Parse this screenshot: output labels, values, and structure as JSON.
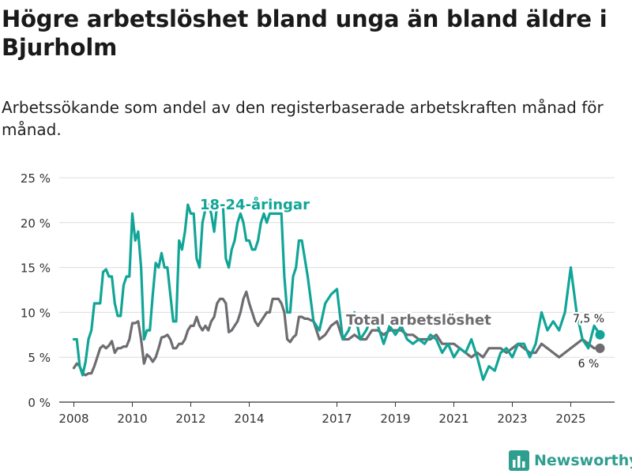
{
  "title": "Högre arbetslöshet bland unga än bland äldre i Bjurholm",
  "subtitle": "Arbetssökande som andel av den registerbaserade arbetskraften månad för månad.",
  "brand": {
    "name": "Newsworthy",
    "icon": "bar-chart-logo-icon",
    "color": "#2e9e8f"
  },
  "chart_data": {
    "type": "line",
    "title": "Högre arbetslöshet bland unga än bland äldre i Bjurholm",
    "xlabel": "",
    "ylabel": "",
    "xlim": [
      2007.5,
      2026.5
    ],
    "ylim": [
      0,
      25
    ],
    "grid": true,
    "x_ticks": [
      2008,
      2010,
      2012,
      2014,
      2017,
      2019,
      2021,
      2023,
      2025
    ],
    "y_ticks": [
      0,
      5,
      10,
      15,
      20,
      25
    ],
    "y_tick_labels": [
      "0 %",
      "5 %",
      "10 %",
      "15 %",
      "20 %",
      "25 %"
    ],
    "series": [
      {
        "name": "18-24-åringar",
        "color": "#11a597",
        "end_label": "7,5 %",
        "x": [
          2008.0,
          2008.1,
          2008.2,
          2008.3,
          2008.4,
          2008.5,
          2008.6,
          2008.7,
          2008.8,
          2008.9,
          2009.0,
          2009.1,
          2009.2,
          2009.3,
          2009.4,
          2009.5,
          2009.6,
          2009.7,
          2009.8,
          2009.9,
          2010.0,
          2010.1,
          2010.2,
          2010.3,
          2010.4,
          2010.5,
          2010.6,
          2010.7,
          2010.8,
          2010.9,
          2011.0,
          2011.1,
          2011.2,
          2011.3,
          2011.4,
          2011.5,
          2011.6,
          2011.7,
          2011.8,
          2011.9,
          2012.0,
          2012.1,
          2012.2,
          2012.3,
          2012.4,
          2012.5,
          2012.6,
          2012.7,
          2012.8,
          2012.9,
          2013.0,
          2013.1,
          2013.2,
          2013.3,
          2013.4,
          2013.5,
          2013.6,
          2013.7,
          2013.8,
          2013.9,
          2014.0,
          2014.1,
          2014.2,
          2014.3,
          2014.4,
          2014.5,
          2014.6,
          2014.7,
          2014.8,
          2014.9,
          2015.0,
          2015.1,
          2015.2,
          2015.3,
          2015.4,
          2015.5,
          2015.6,
          2015.7,
          2015.8,
          2015.9,
          2016.0,
          2016.2,
          2016.4,
          2016.6,
          2016.8,
          2017.0,
          2017.2,
          2017.4,
          2017.6,
          2017.8,
          2018.0,
          2018.2,
          2018.4,
          2018.6,
          2018.8,
          2019.0,
          2019.2,
          2019.4,
          2019.6,
          2019.8,
          2020.0,
          2020.2,
          2020.4,
          2020.6,
          2020.8,
          2021.0,
          2021.2,
          2021.4,
          2021.6,
          2021.8,
          2022.0,
          2022.2,
          2022.4,
          2022.6,
          2022.8,
          2023.0,
          2023.2,
          2023.4,
          2023.6,
          2023.8,
          2024.0,
          2024.2,
          2024.4,
          2024.6,
          2024.8,
          2025.0,
          2025.2,
          2025.4,
          2025.6,
          2025.8,
          2026.0
        ],
        "values": [
          7.0,
          7.0,
          4.0,
          3.0,
          4.5,
          7.0,
          8.0,
          11.0,
          11.0,
          11.0,
          14.5,
          14.8,
          14.0,
          14.0,
          11.0,
          9.6,
          9.6,
          13.0,
          14.0,
          14.0,
          21.0,
          18.0,
          19.0,
          15.0,
          7.0,
          8.0,
          8.0,
          12.0,
          15.5,
          15.0,
          16.6,
          15.0,
          15.0,
          12.0,
          9.0,
          9.0,
          18.0,
          17.0,
          19.0,
          22.0,
          21.0,
          21.0,
          16.0,
          15.0,
          20.0,
          21.5,
          22.0,
          21.0,
          19.0,
          22.0,
          22.0,
          22.0,
          16.0,
          15.0,
          17.0,
          18.0,
          20.0,
          21.0,
          20.0,
          18.0,
          18.0,
          17.0,
          17.0,
          18.0,
          20.0,
          21.0,
          20.0,
          21.0,
          21.0,
          21.0,
          21.0,
          21.0,
          14.0,
          10.0,
          10.0,
          14.0,
          15.0,
          18.0,
          18.0,
          16.0,
          14.0,
          9.0,
          8.0,
          11.0,
          12.0,
          12.6,
          7.0,
          8.0,
          10.0,
          7.0,
          8.0,
          9.5,
          8.5,
          6.5,
          8.5,
          7.5,
          8.5,
          7.0,
          6.5,
          7.0,
          6.5,
          7.5,
          7.0,
          5.5,
          6.5,
          5.0,
          6.0,
          5.5,
          7.0,
          5.0,
          2.5,
          4.0,
          3.5,
          5.5,
          6.0,
          5.0,
          6.5,
          6.5,
          5.0,
          6.5,
          10.0,
          8.0,
          9.0,
          8.0,
          10.0,
          15.0,
          10.0,
          7.0,
          6.0,
          8.5,
          7.5
        ]
      },
      {
        "name": "Total arbetslöshet",
        "color": "#6e6c70",
        "end_label": "6 %",
        "x": [
          2008.0,
          2008.1,
          2008.2,
          2008.3,
          2008.4,
          2008.5,
          2008.6,
          2008.7,
          2008.8,
          2008.9,
          2009.0,
          2009.1,
          2009.2,
          2009.3,
          2009.4,
          2009.5,
          2009.6,
          2009.7,
          2009.8,
          2009.9,
          2010.0,
          2010.1,
          2010.2,
          2010.3,
          2010.4,
          2010.5,
          2010.6,
          2010.7,
          2010.8,
          2010.9,
          2011.0,
          2011.1,
          2011.2,
          2011.3,
          2011.4,
          2011.5,
          2011.6,
          2011.7,
          2011.8,
          2011.9,
          2012.0,
          2012.1,
          2012.2,
          2012.3,
          2012.4,
          2012.5,
          2012.6,
          2012.7,
          2012.8,
          2012.9,
          2013.0,
          2013.1,
          2013.2,
          2013.3,
          2013.4,
          2013.5,
          2013.6,
          2013.7,
          2013.8,
          2013.9,
          2014.0,
          2014.1,
          2014.2,
          2014.3,
          2014.4,
          2014.5,
          2014.6,
          2014.7,
          2014.8,
          2014.9,
          2015.0,
          2015.1,
          2015.2,
          2015.3,
          2015.4,
          2015.5,
          2015.6,
          2015.7,
          2015.8,
          2015.9,
          2016.0,
          2016.2,
          2016.4,
          2016.6,
          2016.8,
          2017.0,
          2017.2,
          2017.4,
          2017.6,
          2017.8,
          2018.0,
          2018.2,
          2018.4,
          2018.6,
          2018.8,
          2019.0,
          2019.2,
          2019.4,
          2019.6,
          2019.8,
          2020.0,
          2020.2,
          2020.4,
          2020.6,
          2020.8,
          2021.0,
          2021.2,
          2021.4,
          2021.6,
          2021.8,
          2022.0,
          2022.2,
          2022.4,
          2022.6,
          2022.8,
          2023.0,
          2023.2,
          2023.4,
          2023.6,
          2023.8,
          2024.0,
          2024.2,
          2024.4,
          2024.6,
          2024.8,
          2025.0,
          2025.2,
          2025.4,
          2025.6,
          2025.8,
          2026.0
        ],
        "values": [
          3.8,
          4.3,
          4.0,
          3.2,
          3.0,
          3.2,
          3.2,
          4.0,
          5.0,
          6.0,
          6.3,
          6.0,
          6.3,
          6.8,
          5.5,
          6.0,
          6.0,
          6.2,
          6.2,
          7.0,
          8.8,
          8.8,
          9.0,
          7.0,
          4.3,
          5.3,
          5.0,
          4.5,
          5.0,
          6.0,
          7.2,
          7.3,
          7.5,
          7.0,
          6.0,
          6.0,
          6.5,
          6.5,
          7.0,
          8.0,
          8.5,
          8.5,
          9.5,
          8.5,
          8.0,
          8.5,
          8.0,
          9.0,
          9.5,
          11.0,
          11.5,
          11.5,
          11.0,
          7.8,
          8.0,
          8.5,
          9.0,
          10.0,
          11.5,
          12.3,
          11.0,
          10.0,
          9.0,
          8.5,
          9.0,
          9.5,
          10.0,
          10.0,
          11.5,
          11.5,
          11.5,
          11.0,
          10.0,
          7.0,
          6.7,
          7.2,
          7.5,
          9.5,
          9.5,
          9.3,
          9.3,
          9.0,
          7.0,
          7.5,
          8.5,
          9.0,
          7.0,
          7.0,
          7.5,
          7.0,
          7.0,
          8.0,
          8.0,
          7.5,
          8.0,
          8.0,
          8.0,
          7.5,
          7.5,
          7.0,
          7.0,
          7.0,
          7.5,
          6.5,
          6.5,
          6.5,
          6.0,
          5.5,
          5.0,
          5.5,
          5.0,
          6.0,
          6.0,
          6.0,
          5.5,
          6.0,
          6.5,
          6.0,
          5.5,
          5.5,
          6.5,
          6.0,
          5.5,
          5.0,
          5.5,
          6.0,
          6.5,
          7.0,
          6.5,
          6.0,
          6.0
        ]
      }
    ]
  }
}
